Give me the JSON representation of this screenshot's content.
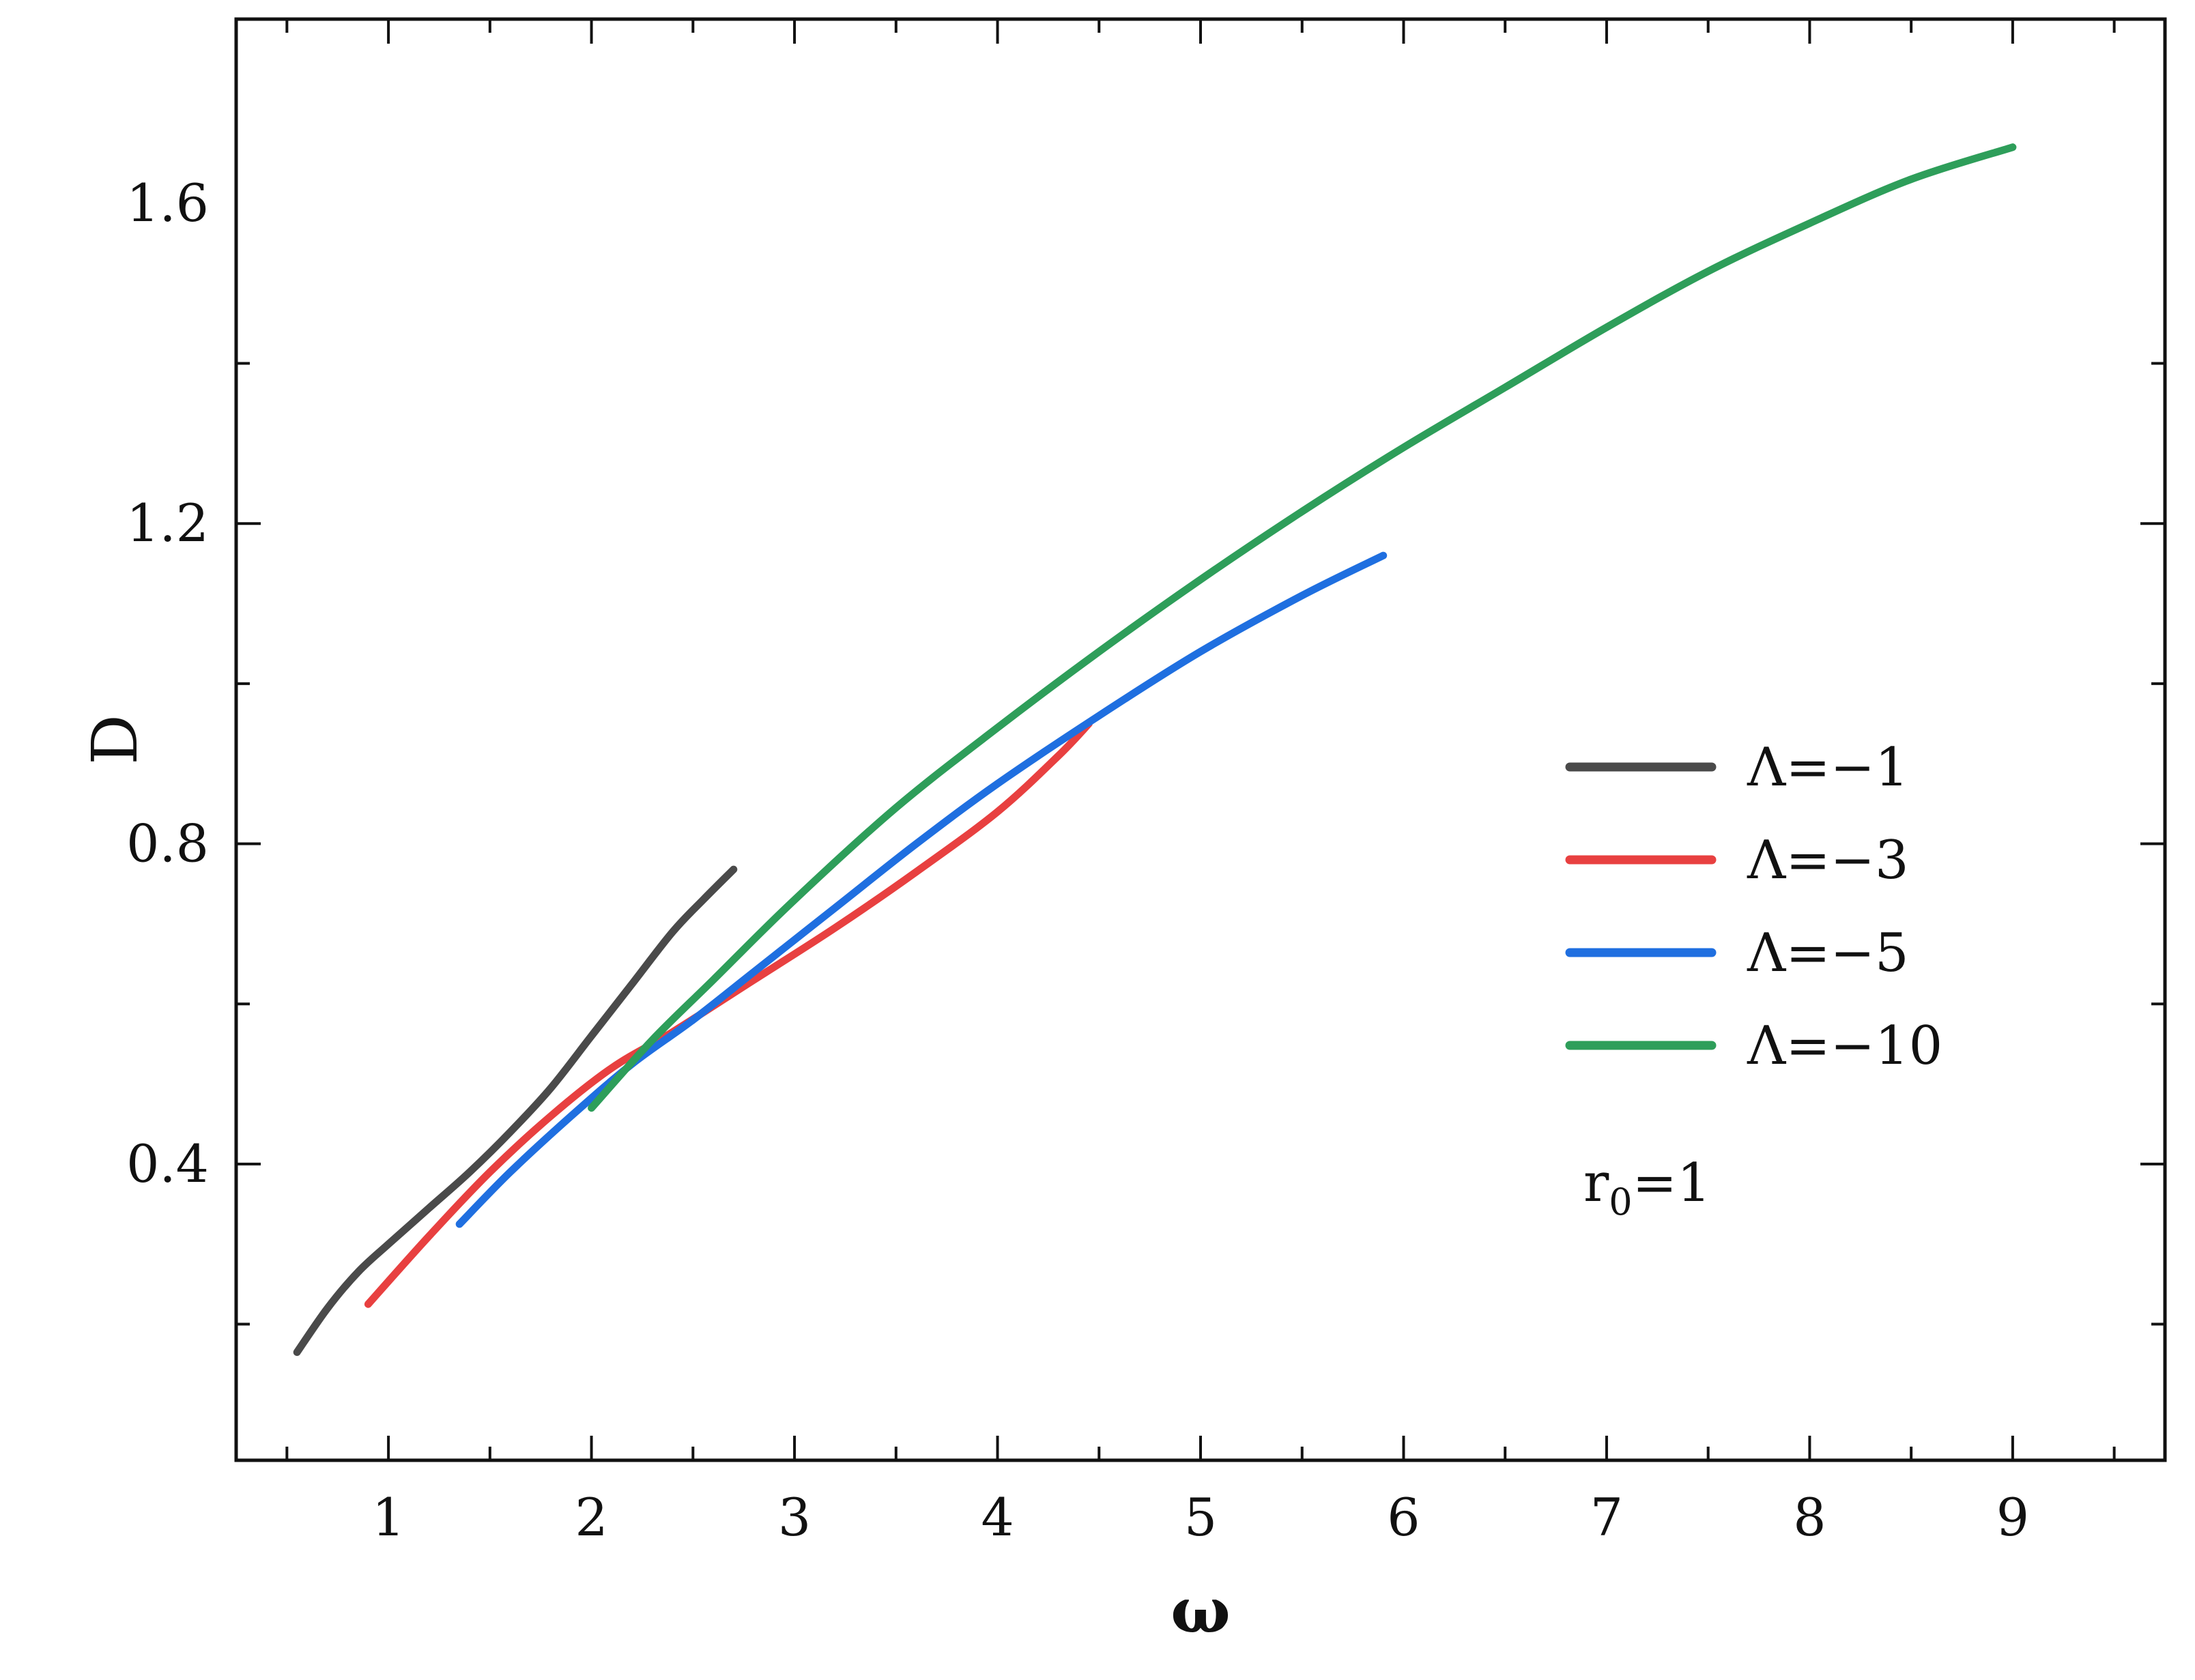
{
  "chart_data": {
    "type": "line",
    "xlabel": "ω",
    "ylabel": "D",
    "xlim": [
      0.25,
      9.75
    ],
    "ylim": [
      0.03,
      1.83
    ],
    "x_ticks": [
      1,
      2,
      3,
      4,
      5,
      6,
      7,
      8,
      9
    ],
    "x_tick_labels": [
      "1",
      "2",
      "3",
      "4",
      "5",
      "6",
      "7",
      "8",
      "9"
    ],
    "y_ticks": [
      0.4,
      0.8,
      1.2,
      1.6
    ],
    "y_tick_labels": [
      "0.4",
      "0.8",
      "1.2",
      "1.6"
    ],
    "grid": false,
    "legend_position": "right",
    "annotation": {
      "base": "r",
      "subscript": "0",
      "suffix": "=1"
    },
    "series": [
      {
        "name": "Λ=−1",
        "color": "#4a4a4a",
        "x": [
          0.55,
          0.7,
          0.85,
          1.0,
          1.2,
          1.4,
          1.6,
          1.8,
          2.0,
          2.2,
          2.4,
          2.55,
          2.7
        ],
        "y": [
          0.165,
          0.22,
          0.265,
          0.3,
          0.345,
          0.39,
          0.44,
          0.495,
          0.56,
          0.625,
          0.69,
          0.73,
          0.768
        ]
      },
      {
        "name": "Λ=−3",
        "color": "#e84040",
        "x": [
          0.9,
          1.2,
          1.5,
          1.8,
          2.1,
          2.4,
          2.8,
          3.2,
          3.6,
          4.0,
          4.3,
          4.45
        ],
        "y": [
          0.225,
          0.31,
          0.39,
          0.46,
          0.52,
          0.565,
          0.63,
          0.695,
          0.765,
          0.84,
          0.91,
          0.95
        ]
      },
      {
        "name": "Λ=−5",
        "color": "#1f6fe0",
        "x": [
          1.35,
          1.6,
          1.9,
          2.2,
          2.5,
          2.8,
          3.2,
          3.6,
          4.0,
          4.5,
          5.0,
          5.5,
          5.9
        ],
        "y": [
          0.325,
          0.39,
          0.46,
          0.525,
          0.58,
          0.64,
          0.72,
          0.8,
          0.875,
          0.96,
          1.04,
          1.11,
          1.16
        ]
      },
      {
        "name": "Λ=−10",
        "color": "#2e9e5a",
        "x": [
          2.0,
          2.3,
          2.6,
          3.0,
          3.5,
          4.0,
          4.5,
          5.0,
          5.5,
          6.0,
          6.5,
          7.0,
          7.5,
          8.0,
          8.5,
          9.0
        ],
        "y": [
          0.47,
          0.555,
          0.63,
          0.73,
          0.845,
          0.945,
          1.04,
          1.13,
          1.215,
          1.295,
          1.37,
          1.445,
          1.515,
          1.575,
          1.63,
          1.67
        ]
      }
    ]
  }
}
